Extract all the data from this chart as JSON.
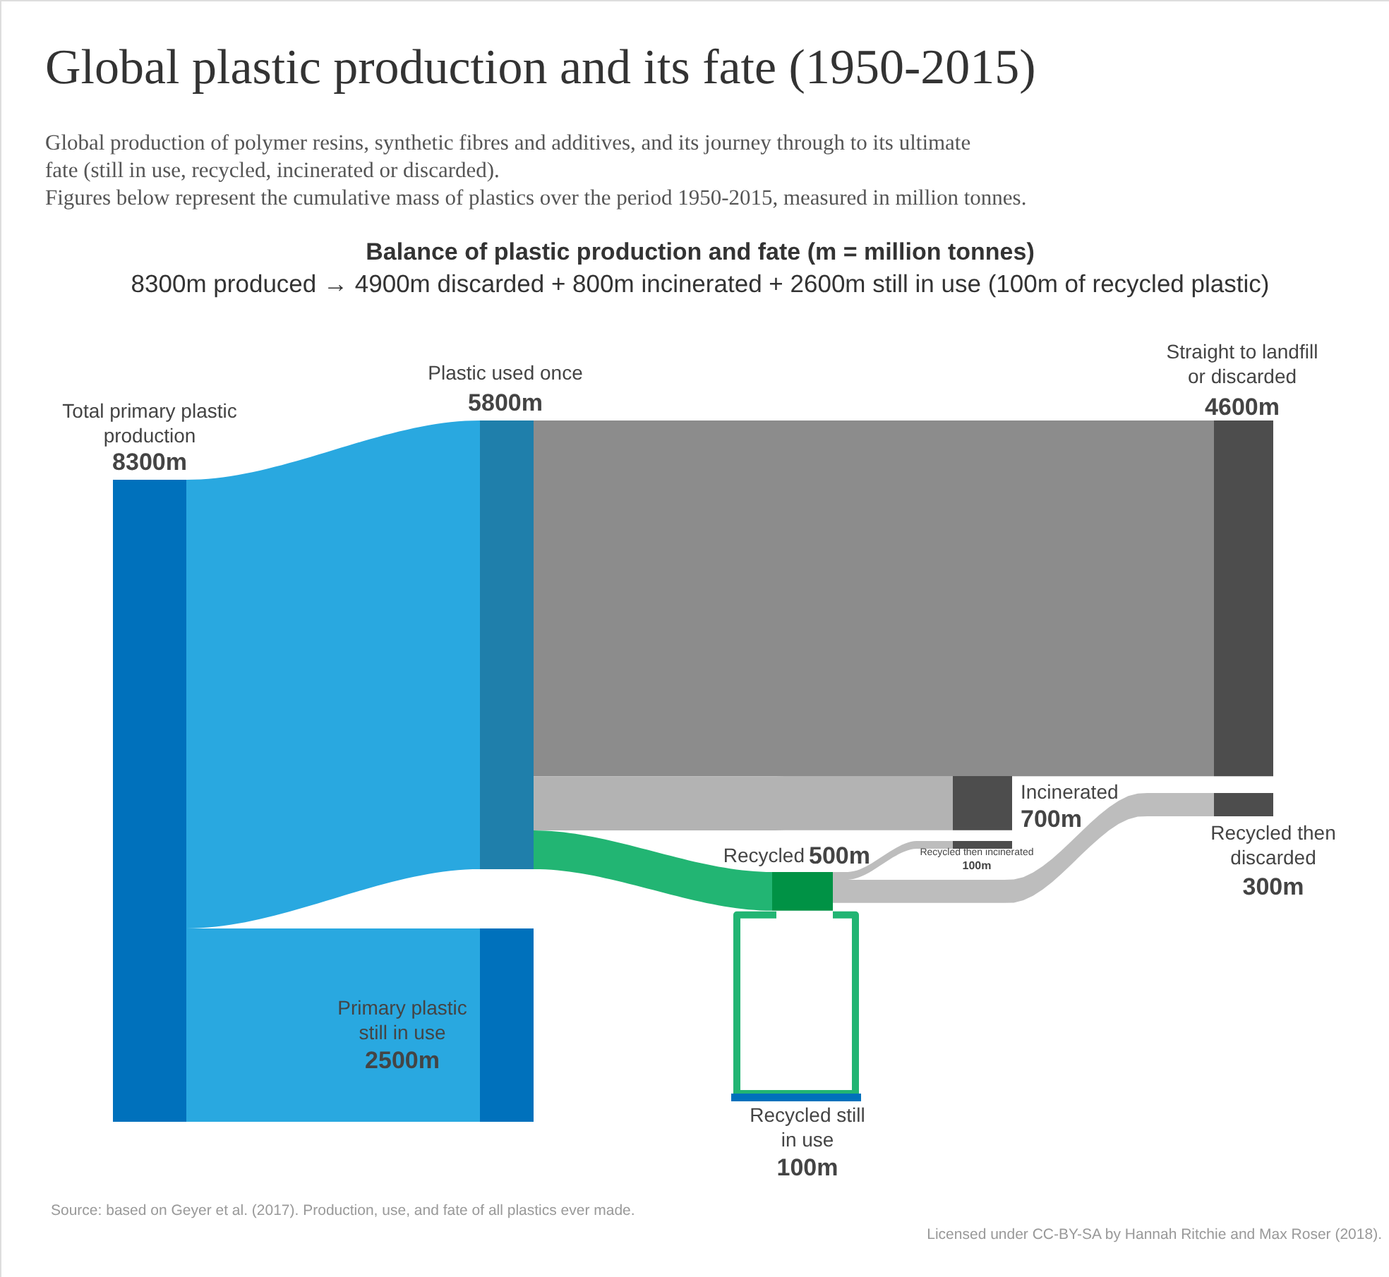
{
  "chart_data": {
    "type": "other",
    "title": "Global plastic production and its fate (1950-2015)",
    "subtitle": "Global production of polymer resins, synthetic fibres and additives, and its journey through to its ultimate fate (still in use, recycled, incinerated or discarded).\nFigures below represent the cumulative mass of plastics over the period 1950-2015, measured in million tonnes.",
    "categories": [
      "Total primary plastic production",
      "Plastic used once",
      "Straight to landfill or discarded",
      "Incinerated",
      "Recycled",
      "Recycled then incinerated",
      "Recycled then discarded",
      "Primary plastic still in use",
      "Recycled still in use"
    ],
    "values": [
      8300,
      5800,
      4600,
      700,
      500,
      100,
      300,
      2500,
      100
    ],
    "value_labels": [
      "8300m",
      "5800m",
      "4600m",
      "700m",
      "500m",
      "100m",
      "300m",
      "2500m",
      "100m"
    ],
    "annotations": [
      "Balance of plastic production and fate (m = million tonnes)",
      "8300m produced → 4900m discarded + 800m incinerated + 2600m still in use (100m of recycled plastic)",
      "Source: based on Geyer et al. (2017). Production, use, and fate of all plastics ever made.",
      "Licensed under CC-BY-SA by Hannah Ritchie and Max Roser (2018)."
    ]
  }
}
